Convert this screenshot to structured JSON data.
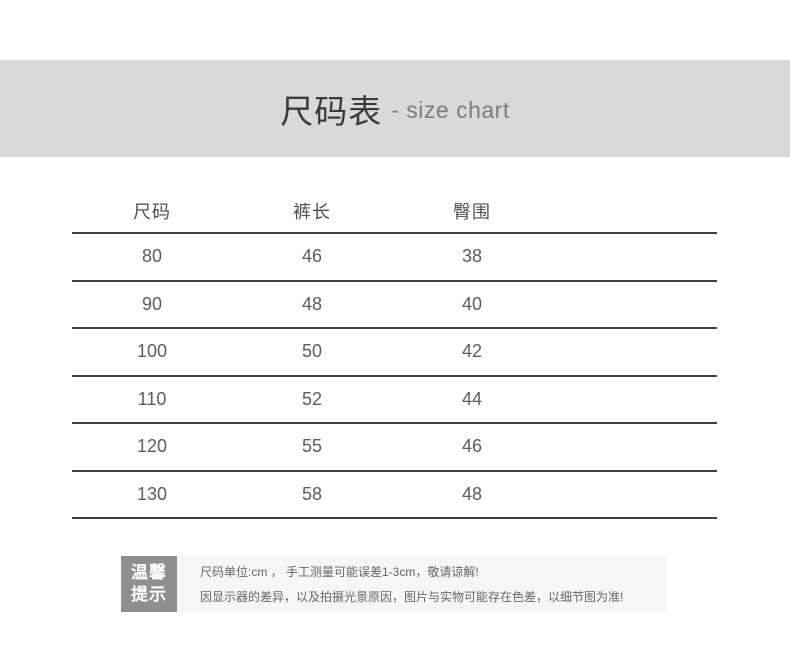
{
  "header": {
    "title_cn": "尺码表",
    "title_en": "- size chart"
  },
  "size_table": {
    "headers": [
      "尺码",
      "裤长",
      "臀围"
    ],
    "rows": [
      [
        "80",
        "46",
        "38"
      ],
      [
        "90",
        "48",
        "40"
      ],
      [
        "100",
        "50",
        "42"
      ],
      [
        "110",
        "52",
        "44"
      ],
      [
        "120",
        "55",
        "46"
      ],
      [
        "130",
        "58",
        "48"
      ]
    ]
  },
  "notice": {
    "badge_line1": "温馨",
    "badge_line2": "提示",
    "line1": "尺码单位:cm ， 手工测量可能误差1-3cm，敬请谅解!",
    "line2": "因显示器的差异，以及拍摄光景原因，图片与实物可能存在色差，以细节图为准!"
  },
  "colors": {
    "band_bg": "#d9d9d9",
    "table_line": "#3e3e3e",
    "text_primary": "#3b3b3b",
    "text_secondary": "#5c5c5c",
    "title_en": "#7d7d7d",
    "notice_bg": "#f6f6f6",
    "badge_bg": "#8f8f8f",
    "notice_text": "#666666"
  }
}
